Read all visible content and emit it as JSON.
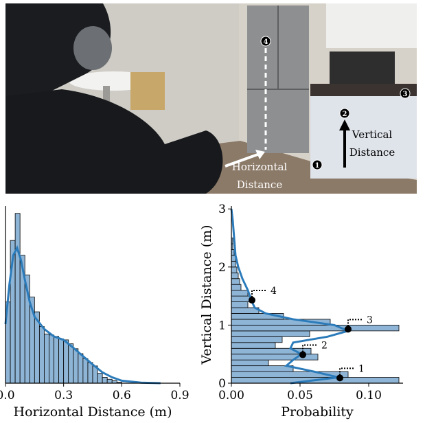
{
  "photo": {
    "markers": [
      {
        "label": "1"
      },
      {
        "label": "2"
      },
      {
        "label": "3"
      },
      {
        "label": "4"
      }
    ],
    "horizontal_label": [
      "Horizontal",
      "Distance"
    ],
    "vertical_label": [
      "Vertical",
      "Distance"
    ]
  },
  "chart_data": [
    {
      "type": "histogram",
      "orientation": "vertical",
      "xlabel": "Horizontal Distance (m)",
      "color": "#8fb5d6",
      "line_color": "#2b7bba",
      "bins": [
        0,
        0.025,
        0.05,
        0.075,
        0.1,
        0.125,
        0.15,
        0.175,
        0.2,
        0.225,
        0.25,
        0.275,
        0.3,
        0.325,
        0.35,
        0.375,
        0.4,
        0.425,
        0.45,
        0.475,
        0.5,
        0.525,
        0.55,
        0.575,
        0.6
      ],
      "values": [
        1.65,
        2.9,
        3.45,
        2.6,
        2.2,
        1.75,
        1.45,
        1.15,
        1.0,
        0.98,
        0.95,
        0.9,
        0.88,
        0.8,
        0.7,
        0.6,
        0.5,
        0.42,
        0.35,
        0.2,
        0.12,
        0.08,
        0.05,
        0.02
      ],
      "kde": {
        "x": [
          0,
          0.02,
          0.04,
          0.06,
          0.08,
          0.1,
          0.125,
          0.15,
          0.2,
          0.25,
          0.3,
          0.35,
          0.4,
          0.45,
          0.5,
          0.55,
          0.6,
          0.7,
          0.8
        ],
        "y": [
          1.2,
          2.0,
          2.6,
          2.75,
          2.5,
          2.1,
          1.65,
          1.35,
          1.1,
          0.95,
          0.88,
          0.72,
          0.55,
          0.38,
          0.22,
          0.12,
          0.05,
          0.01,
          0.0
        ]
      },
      "xlim": [
        0,
        0.9
      ],
      "xticks": [
        {
          "value": 0,
          "label": "0.0"
        },
        0.3,
        0.6,
        0.9
      ],
      "ylim": [
        0,
        3.6
      ]
    },
    {
      "type": "histogram",
      "orientation": "horizontal",
      "xlabel": "Probability",
      "ylabel": "Vertical Distance (m)",
      "color": "#8fb5d6",
      "line_color": "#2b7bba",
      "bins": [
        0,
        0.1,
        0.2,
        0.3,
        0.4,
        0.5,
        0.6,
        0.7,
        0.8,
        0.9,
        1.0,
        1.1,
        1.2,
        1.3,
        1.4,
        1.5,
        1.6,
        1.7,
        1.8,
        1.9,
        2.0,
        2.1,
        2.2,
        2.3,
        2.4,
        2.5
      ],
      "values": [
        0.122,
        0.085,
        0.045,
        0.027,
        0.063,
        0.058,
        0.032,
        0.037,
        0.057,
        0.122,
        0.072,
        0.038,
        0.02,
        0.012,
        0.015,
        0.012,
        0.007,
        0.006,
        0.005,
        0.004,
        0.003,
        0.003,
        0.002,
        0.001,
        0.001
      ],
      "kde": {
        "y": [
          0,
          0.1,
          0.2,
          0.3,
          0.4,
          0.5,
          0.6,
          0.7,
          0.8,
          0.9,
          1.0,
          1.1,
          1.2,
          1.3,
          1.4,
          1.6,
          1.8,
          2.0,
          2.2,
          2.5,
          2.8,
          3.0
        ],
        "x": [
          0.043,
          0.078,
          0.06,
          0.04,
          0.045,
          0.051,
          0.043,
          0.045,
          0.07,
          0.085,
          0.075,
          0.045,
          0.025,
          0.017,
          0.015,
          0.012,
          0.008,
          0.005,
          0.003,
          0.002,
          0.001,
          0.0
        ]
      },
      "points": [
        {
          "label": "1",
          "x": 0.079,
          "y": 0.09
        },
        {
          "label": "2",
          "x": 0.052,
          "y": 0.49
        },
        {
          "label": "3",
          "x": 0.085,
          "y": 0.93
        },
        {
          "label": "4",
          "x": 0.015,
          "y": 1.43
        }
      ],
      "xlim": [
        0,
        0.125
      ],
      "xticks": [
        {
          "value": 0,
          "label": "0.00"
        },
        {
          "value": 0.05,
          "label": "0.05"
        },
        {
          "value": 0.1,
          "label": "0.10"
        }
      ],
      "ylim": [
        0,
        3.05
      ],
      "yticks": [
        0,
        1,
        2,
        3
      ]
    }
  ]
}
